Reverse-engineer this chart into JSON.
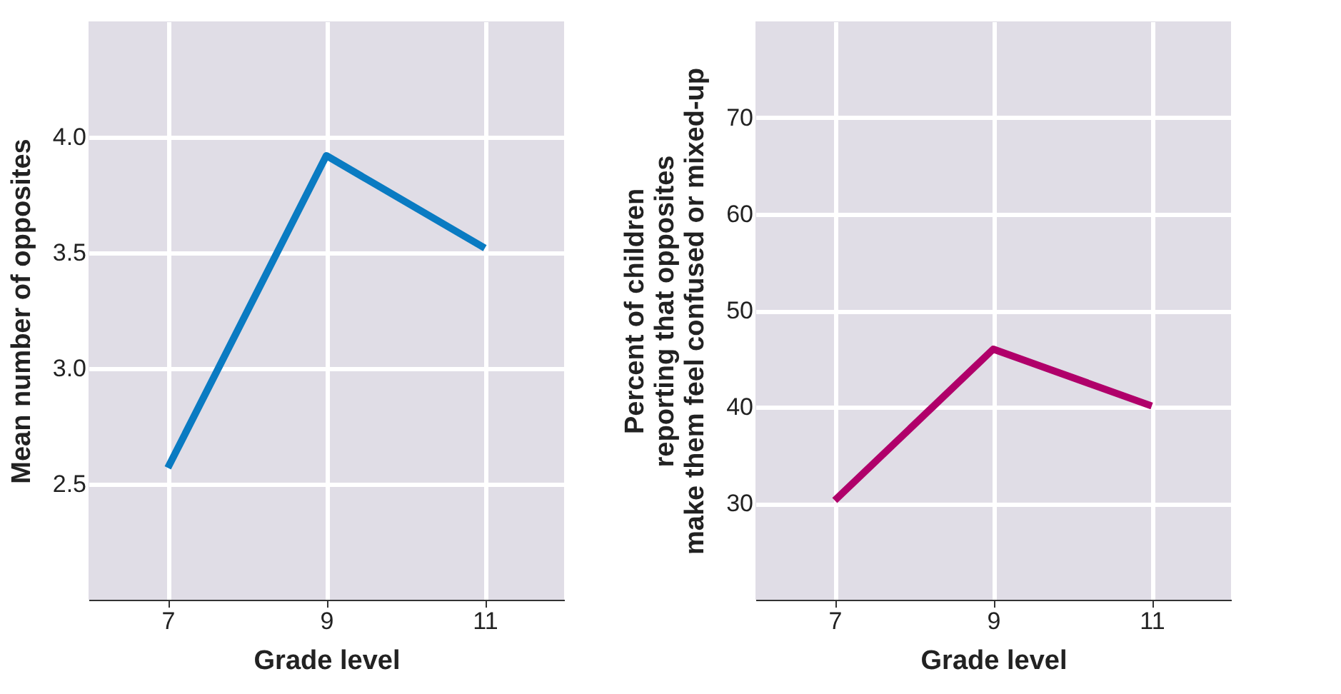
{
  "chart_data": [
    {
      "type": "line",
      "xlabel": "Grade level",
      "ylabel": "Mean number of opposites",
      "x": [
        7,
        9,
        11
      ],
      "xlim": [
        6,
        12
      ],
      "xticks": [
        7,
        9,
        11
      ],
      "ylim": [
        2.0,
        4.5
      ],
      "yticks": [
        2.5,
        {
          "value": 3,
          "label": "3.0"
        },
        3.5,
        {
          "value": 4,
          "label": "4.0"
        }
      ],
      "grid": true,
      "series": [
        {
          "color": "#0a7bc2",
          "values": [
            2.57,
            3.92,
            3.52
          ]
        }
      ]
    },
    {
      "type": "line",
      "xlabel": "Grade level",
      "ylabel": "Percent of children\nreporting that opposites\nmake them feel confused or mixed-up",
      "x": [
        7,
        9,
        11
      ],
      "xlim": [
        6,
        12
      ],
      "xticks": [
        7,
        9,
        11
      ],
      "ylim": [
        20,
        80
      ],
      "yticks": [
        30,
        40,
        50,
        60,
        70
      ],
      "grid": true,
      "series": [
        {
          "color": "#b0006a",
          "values": [
            30.3,
            46,
            40.1
          ]
        }
      ]
    }
  ]
}
